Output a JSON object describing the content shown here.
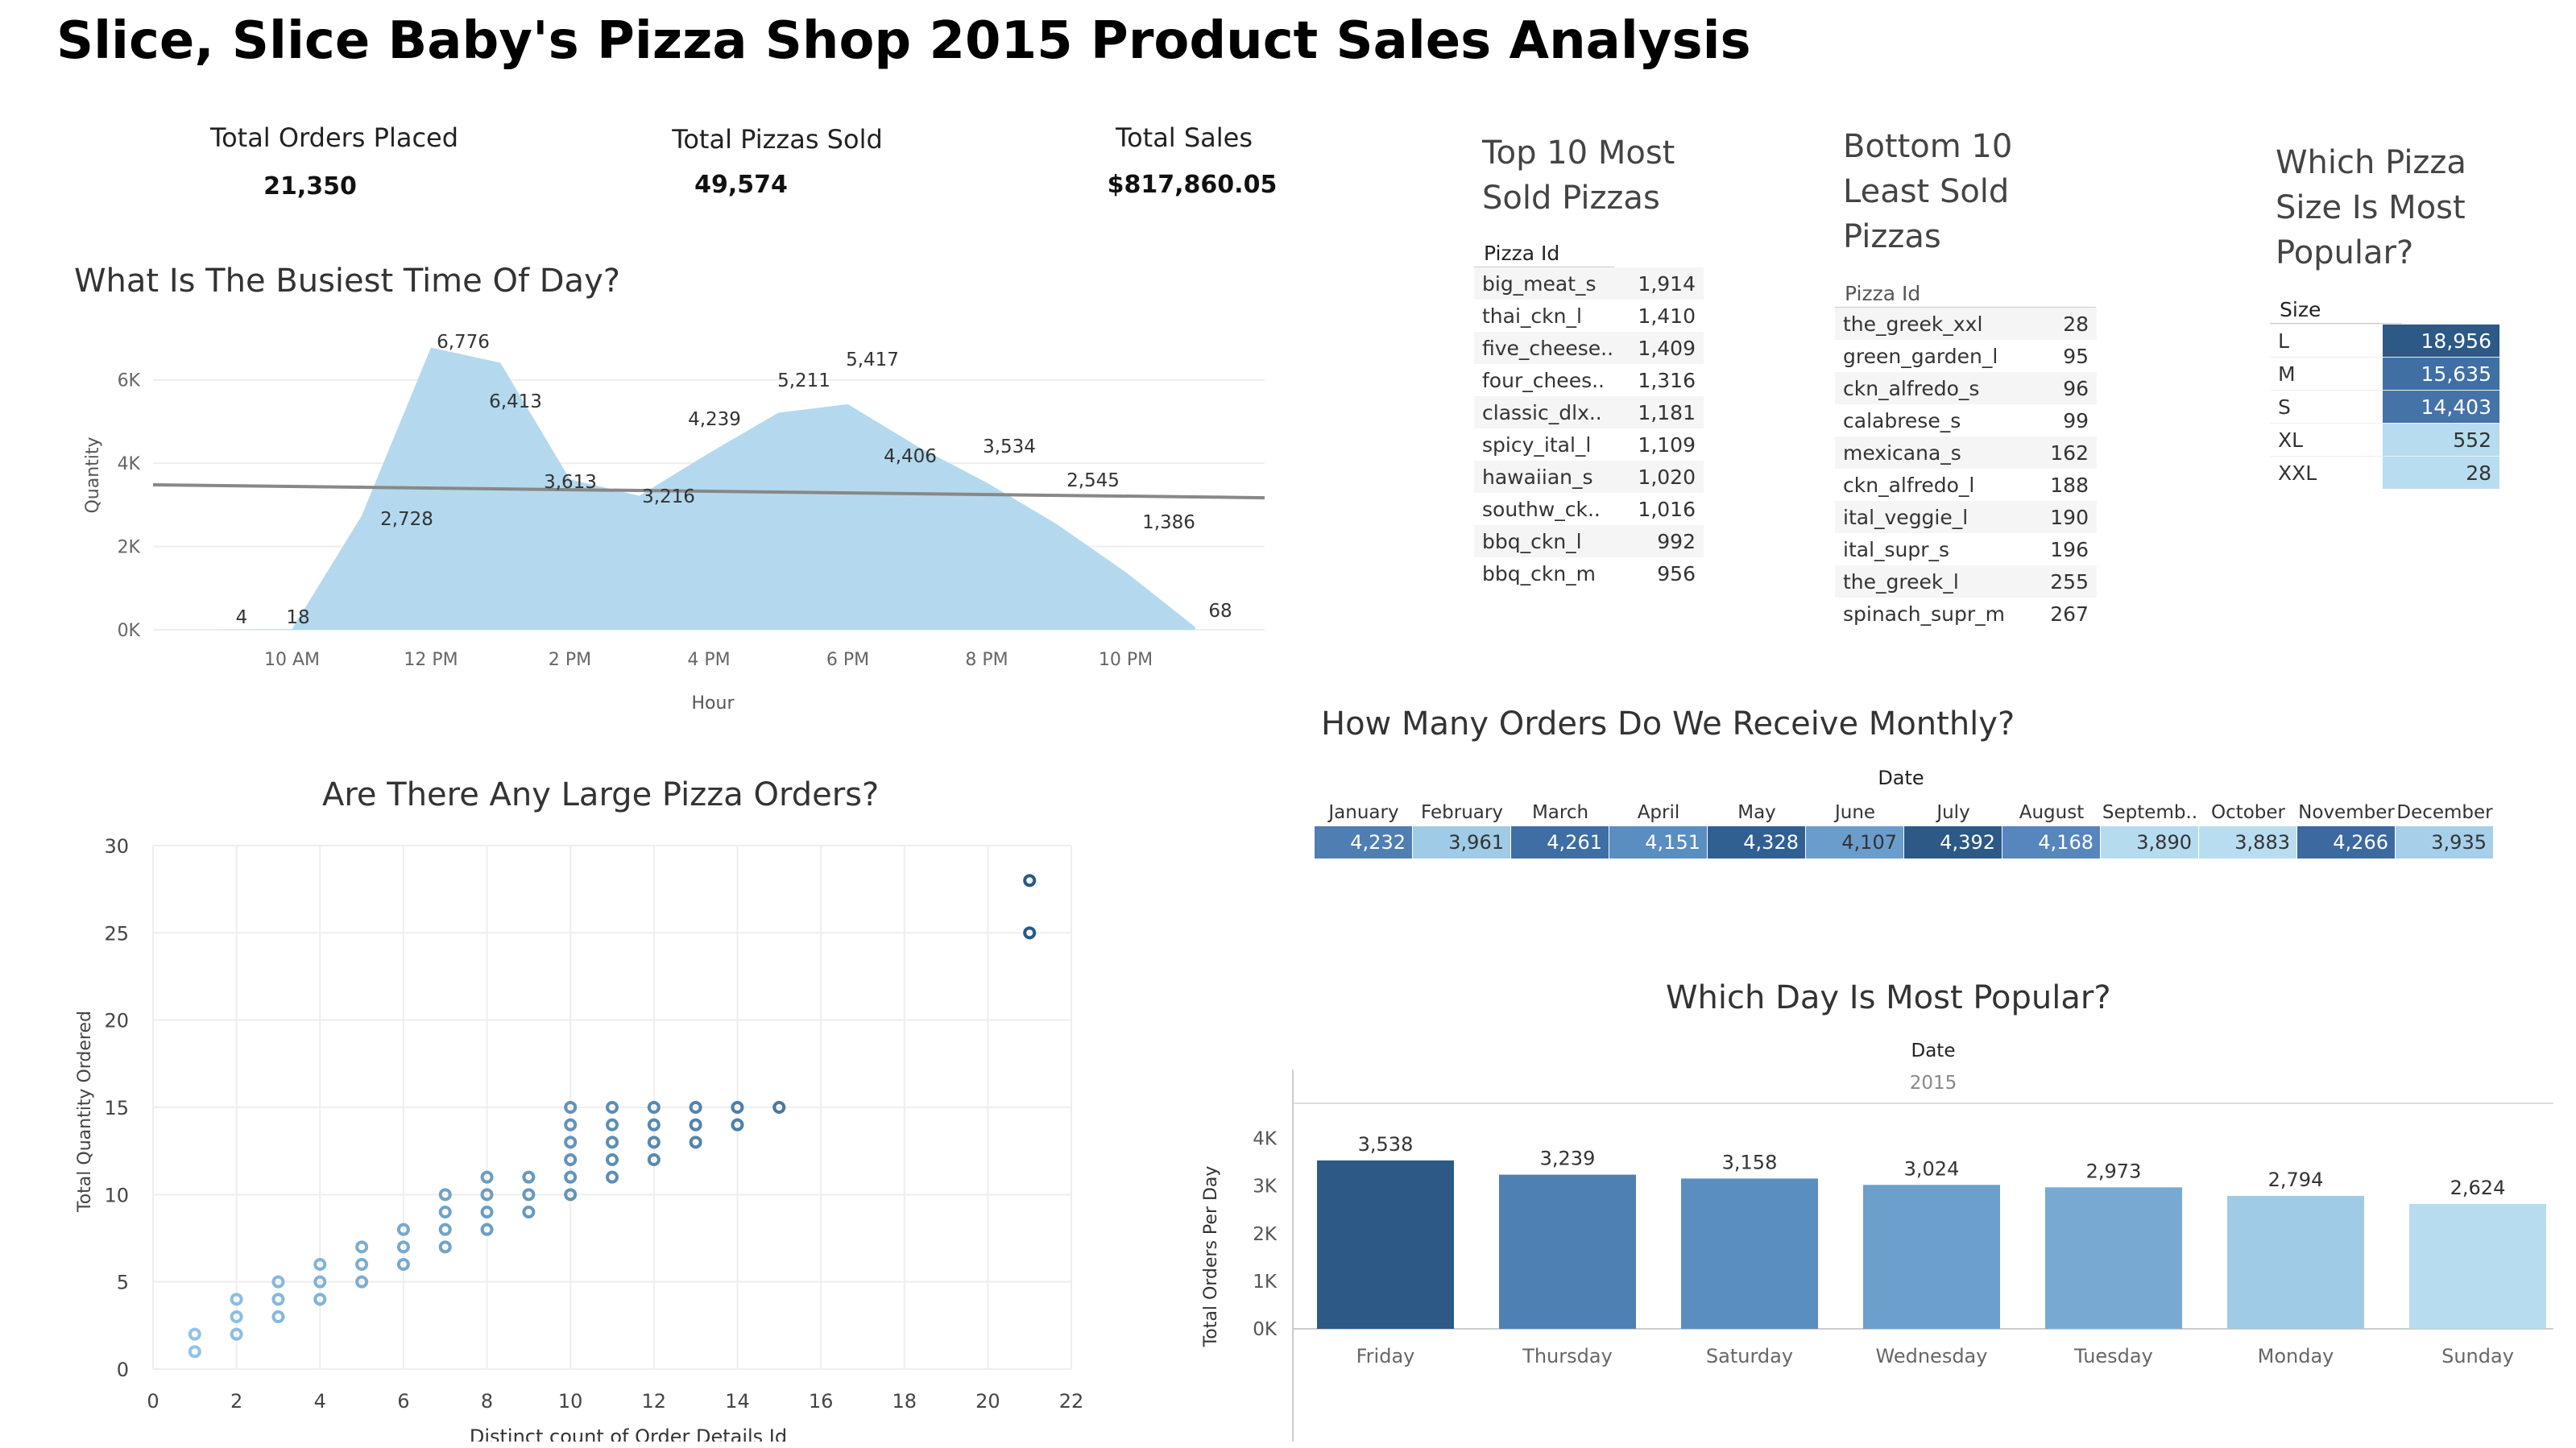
{
  "title": "Slice, Slice Baby's Pizza Shop 2015 Product Sales Analysis",
  "kpis": {
    "orders_label": "Total Orders Placed",
    "orders_value": "21,350",
    "pizzas_label": "Total Pizzas Sold",
    "pizzas_value": "49,574",
    "sales_label": "Total Sales",
    "sales_value": "$817,860.05"
  },
  "top10": {
    "title_line1": "Top 10 Most",
    "title_line2": "Sold Pizzas",
    "header": "Pizza Id",
    "rows": [
      {
        "id": "big_meat_s",
        "v": "1,914"
      },
      {
        "id": "thai_ckn_l",
        "v": "1,410"
      },
      {
        "id": "five_cheese..",
        "v": "1,409"
      },
      {
        "id": "four_chees..",
        "v": "1,316"
      },
      {
        "id": "classic_dlx..",
        "v": "1,181"
      },
      {
        "id": "spicy_ital_l",
        "v": "1,109"
      },
      {
        "id": "hawaiian_s",
        "v": "1,020"
      },
      {
        "id": "southw_ck..",
        "v": "1,016"
      },
      {
        "id": "bbq_ckn_l",
        "v": "992"
      },
      {
        "id": "bbq_ckn_m",
        "v": "956"
      }
    ]
  },
  "bottom10": {
    "title_line1": "Bottom 10",
    "title_line2": "Least Sold",
    "title_line3": "Pizzas",
    "header": "Pizza Id",
    "rows": [
      {
        "id": "the_greek_xxl",
        "v": "28"
      },
      {
        "id": "green_garden_l",
        "v": "95"
      },
      {
        "id": "ckn_alfredo_s",
        "v": "96"
      },
      {
        "id": "calabrese_s",
        "v": "99"
      },
      {
        "id": "mexicana_s",
        "v": "162"
      },
      {
        "id": "ckn_alfredo_l",
        "v": "188"
      },
      {
        "id": "ital_veggie_l",
        "v": "190"
      },
      {
        "id": "ital_supr_s",
        "v": "196"
      },
      {
        "id": "the_greek_l",
        "v": "255"
      },
      {
        "id": "spinach_supr_m",
        "v": "267"
      }
    ]
  },
  "sizes": {
    "title_line1": "Which Pizza",
    "title_line2": "Size Is Most",
    "title_line3": "Popular?",
    "header": "Size",
    "rows": [
      {
        "id": "L",
        "v": "18,956",
        "color": "#2c5985",
        "text": "#ffffff"
      },
      {
        "id": "M",
        "v": "15,635",
        "color": "#3f6fa3",
        "text": "#ffffff"
      },
      {
        "id": "S",
        "v": "14,403",
        "color": "#4573a8",
        "text": "#ffffff"
      },
      {
        "id": "XL",
        "v": "552",
        "color": "#b7dcef",
        "text": "#333333"
      },
      {
        "id": "XXL",
        "v": "28",
        "color": "#b9ddf0",
        "text": "#333333"
      }
    ]
  },
  "hourly": {
    "title": "What Is The Busiest Time Of Day?",
    "ylabel": "Quantity",
    "xlabel": "Hour",
    "yticks": [
      "0K",
      "2K",
      "4K",
      "6K"
    ],
    "xticks": [
      "10 AM",
      "12 PM",
      "2 PM",
      "4 PM",
      "6 PM",
      "8 PM",
      "10 PM"
    ]
  },
  "scatter": {
    "title": "Are There Any Large Pizza Orders?",
    "xlabel": "Distinct count of Order Details Id",
    "ylabel": "Total Quantity Ordered",
    "xticks": [
      "0",
      "2",
      "4",
      "6",
      "8",
      "10",
      "12",
      "14",
      "16",
      "18",
      "20",
      "22"
    ],
    "yticks": [
      "0",
      "5",
      "10",
      "15",
      "20",
      "25",
      "30"
    ]
  },
  "monthly": {
    "title": "How Many Orders Do We Receive Monthly?",
    "header": "Date",
    "months": [
      {
        "name": "January",
        "v": "4,232",
        "color": "#4f7eb3",
        "text": "#ffffff"
      },
      {
        "name": "February",
        "v": "3,961",
        "color": "#9fcbe6",
        "text": "#333333"
      },
      {
        "name": "March",
        "v": "4,261",
        "color": "#3e6ea3",
        "text": "#ffffff"
      },
      {
        "name": "April",
        "v": "4,151",
        "color": "#5a8dc0",
        "text": "#ffffff"
      },
      {
        "name": "May",
        "v": "4,328",
        "color": "#305f92",
        "text": "#ffffff"
      },
      {
        "name": "June",
        "v": "4,107",
        "color": "#6a9dcc",
        "text": "#333333"
      },
      {
        "name": "July",
        "v": "4,392",
        "color": "#2c5985",
        "text": "#ffffff"
      },
      {
        "name": "August",
        "v": "4,168",
        "color": "#5686bd",
        "text": "#ffffff"
      },
      {
        "name": "Septemb..",
        "v": "3,890",
        "color": "#b5dbef",
        "text": "#333333"
      },
      {
        "name": "October",
        "v": "3,883",
        "color": "#b9ddf0",
        "text": "#333333"
      },
      {
        "name": "November",
        "v": "4,266",
        "color": "#3c6aa0",
        "text": "#ffffff"
      },
      {
        "name": "December",
        "v": "3,935",
        "color": "#a6d0ea",
        "text": "#333333"
      }
    ]
  },
  "weekday": {
    "title": "Which Day Is Most Popular?",
    "header": "Date",
    "year": "2015",
    "ylabel": "Total Orders Per Day",
    "yticks": [
      "0K",
      "1K",
      "2K",
      "3K",
      "4K"
    ]
  },
  "chart_data": [
    {
      "type": "area",
      "title": "What Is The Busiest Time Of Day?",
      "xlabel": "Hour",
      "ylabel": "Quantity",
      "x": [
        9,
        10,
        11,
        12,
        13,
        14,
        15,
        16,
        17,
        18,
        19,
        20,
        21,
        22,
        23
      ],
      "values": [
        4,
        18,
        2728,
        6776,
        6413,
        3613,
        3216,
        4239,
        5211,
        5417,
        4406,
        3534,
        2545,
        1386,
        68
      ],
      "value_labels": [
        "4",
        "18",
        "2,728",
        "6,776",
        "6,413",
        "3,613",
        "3,216",
        "4,239",
        "5,211",
        "5,417",
        "4,406",
        "3,534",
        "2,545",
        "1,386",
        "68"
      ],
      "trend_line": {
        "start": 3480,
        "end": 3170
      },
      "ylim": [
        0,
        7000
      ],
      "grid": true,
      "colors": {
        "area": "#b4d9ee",
        "trend": "#888888"
      }
    },
    {
      "type": "scatter",
      "title": "Are There Any Large Pizza Orders?",
      "xlabel": "Distinct count of Order Details Id",
      "ylabel": "Total Quantity Ordered",
      "xlim": [
        0,
        22
      ],
      "ylim": [
        0,
        30
      ],
      "grid": true,
      "points": [
        [
          1,
          1
        ],
        [
          1,
          2
        ],
        [
          2,
          2
        ],
        [
          2,
          3
        ],
        [
          2,
          4
        ],
        [
          3,
          3
        ],
        [
          3,
          4
        ],
        [
          3,
          5
        ],
        [
          4,
          4
        ],
        [
          4,
          5
        ],
        [
          4,
          6
        ],
        [
          5,
          5
        ],
        [
          5,
          6
        ],
        [
          5,
          7
        ],
        [
          6,
          6
        ],
        [
          6,
          7
        ],
        [
          6,
          8
        ],
        [
          7,
          7
        ],
        [
          7,
          8
        ],
        [
          7,
          9
        ],
        [
          7,
          10
        ],
        [
          8,
          8
        ],
        [
          8,
          9
        ],
        [
          8,
          10
        ],
        [
          8,
          11
        ],
        [
          9,
          9
        ],
        [
          9,
          10
        ],
        [
          9,
          11
        ],
        [
          10,
          10
        ],
        [
          10,
          11
        ],
        [
          10,
          12
        ],
        [
          10,
          13
        ],
        [
          10,
          14
        ],
        [
          10,
          15
        ],
        [
          11,
          11
        ],
        [
          11,
          12
        ],
        [
          11,
          13
        ],
        [
          11,
          14
        ],
        [
          11,
          15
        ],
        [
          12,
          12
        ],
        [
          12,
          13
        ],
        [
          12,
          14
        ],
        [
          12,
          15
        ],
        [
          13,
          13
        ],
        [
          13,
          14
        ],
        [
          13,
          15
        ],
        [
          14,
          14
        ],
        [
          14,
          15
        ],
        [
          15,
          15
        ],
        [
          21,
          25
        ],
        [
          21,
          28
        ]
      ]
    },
    {
      "type": "table",
      "title": "How Many Orders Do We Receive Monthly?",
      "categories": [
        "January",
        "February",
        "March",
        "April",
        "May",
        "June",
        "July",
        "August",
        "September",
        "October",
        "November",
        "December"
      ],
      "values": [
        4232,
        3961,
        4261,
        4151,
        4328,
        4107,
        4392,
        4168,
        3890,
        3883,
        4266,
        3935
      ]
    },
    {
      "type": "bar",
      "title": "Which Day Is Most Popular?",
      "xlabel": "",
      "ylabel": "Total Orders Per Day",
      "categories": [
        "Friday",
        "Thursday",
        "Saturday",
        "Wednesday",
        "Tuesday",
        "Monday",
        "Sunday"
      ],
      "values": [
        3538,
        3239,
        3158,
        3024,
        2973,
        2794,
        2624
      ],
      "value_labels": [
        "3,538",
        "3,239",
        "3,158",
        "3,024",
        "2,973",
        "2,794",
        "2,624"
      ],
      "ylim": [
        0,
        4400
      ],
      "colors": [
        "#2c5985",
        "#4f80b4",
        "#5b8ec0",
        "#6c9fcc",
        "#78a9d3",
        "#9fcbe6",
        "#b7dcef"
      ]
    },
    {
      "type": "table",
      "title": "Which Pizza Size Is Most Popular?",
      "categories": [
        "L",
        "M",
        "S",
        "XL",
        "XXL"
      ],
      "values": [
        18956,
        15635,
        14403,
        552,
        28
      ]
    }
  ]
}
